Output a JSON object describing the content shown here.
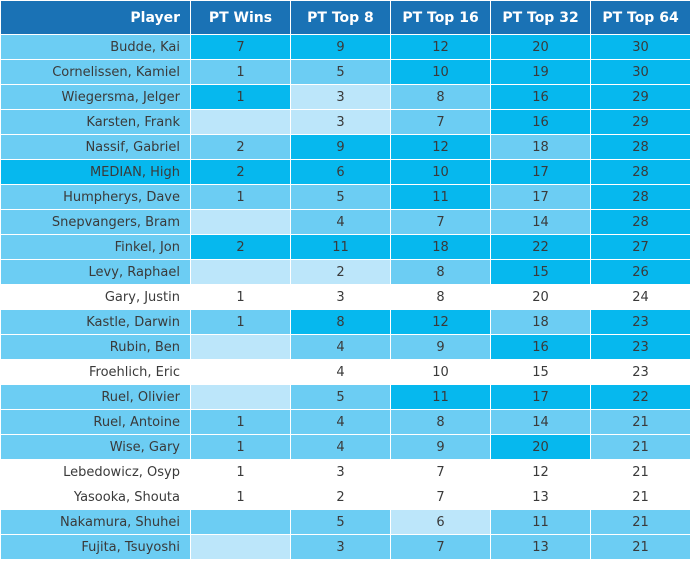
{
  "table": {
    "columns": [
      "Player",
      "PT Wins",
      "PT Top 8",
      "PT Top 16",
      "PT Top 32",
      "PT Top 64"
    ],
    "rows": [
      {
        "cells": [
          "Budde, Kai",
          "7",
          "9",
          "12",
          "20",
          "30"
        ],
        "shades": [
          2,
          3,
          3,
          3,
          3,
          3
        ]
      },
      {
        "cells": [
          "Cornelissen, Kamiel",
          "1",
          "5",
          "10",
          "19",
          "30"
        ],
        "shades": [
          2,
          2,
          2,
          3,
          3,
          3
        ]
      },
      {
        "cells": [
          "Wiegersma, Jelger",
          "1",
          "3",
          "8",
          "16",
          "29"
        ],
        "shades": [
          2,
          3,
          1,
          2,
          3,
          3
        ]
      },
      {
        "cells": [
          "Karsten, Frank",
          "",
          "3",
          "7",
          "16",
          "29"
        ],
        "shades": [
          2,
          1,
          1,
          2,
          3,
          3
        ]
      },
      {
        "cells": [
          "Nassif, Gabriel",
          "2",
          "9",
          "12",
          "18",
          "28"
        ],
        "shades": [
          2,
          2,
          3,
          3,
          2,
          3
        ]
      },
      {
        "cells": [
          "MEDIAN, High",
          "2",
          "6",
          "10",
          "17",
          "28"
        ],
        "shades": [
          3,
          3,
          3,
          3,
          3,
          3
        ]
      },
      {
        "cells": [
          "Humpherys, Dave",
          "1",
          "5",
          "11",
          "17",
          "28"
        ],
        "shades": [
          2,
          2,
          2,
          3,
          2,
          3
        ]
      },
      {
        "cells": [
          "Snepvangers, Bram",
          "",
          "4",
          "7",
          "14",
          "28"
        ],
        "shades": [
          2,
          1,
          2,
          2,
          2,
          3
        ]
      },
      {
        "cells": [
          "Finkel, Jon",
          "2",
          "11",
          "18",
          "22",
          "27"
        ],
        "shades": [
          2,
          3,
          3,
          3,
          3,
          3
        ]
      },
      {
        "cells": [
          "Levy, Raphael",
          "",
          "2",
          "8",
          "15",
          "26"
        ],
        "shades": [
          2,
          1,
          1,
          2,
          3,
          3
        ]
      },
      {
        "cells": [
          "Gary, Justin",
          "1",
          "3",
          "8",
          "20",
          "24"
        ],
        "shades": [
          0,
          0,
          0,
          0,
          0,
          0
        ]
      },
      {
        "cells": [
          "Kastle, Darwin",
          "1",
          "8",
          "12",
          "18",
          "23"
        ],
        "shades": [
          2,
          2,
          3,
          3,
          2,
          3
        ]
      },
      {
        "cells": [
          "Rubin, Ben",
          "",
          "4",
          "9",
          "16",
          "23"
        ],
        "shades": [
          2,
          1,
          2,
          2,
          3,
          3
        ]
      },
      {
        "cells": [
          "Froehlich, Eric",
          "",
          "4",
          "10",
          "15",
          "23"
        ],
        "shades": [
          0,
          0,
          0,
          0,
          0,
          0
        ]
      },
      {
        "cells": [
          "Ruel, Olivier",
          "",
          "5",
          "11",
          "17",
          "22"
        ],
        "shades": [
          2,
          1,
          2,
          3,
          3,
          3
        ]
      },
      {
        "cells": [
          "Ruel, Antoine",
          "1",
          "4",
          "8",
          "14",
          "21"
        ],
        "shades": [
          2,
          2,
          2,
          2,
          2,
          2
        ]
      },
      {
        "cells": [
          "Wise, Gary",
          "1",
          "4",
          "9",
          "20",
          "21"
        ],
        "shades": [
          2,
          2,
          2,
          2,
          3,
          2
        ]
      },
      {
        "cells": [
          "Lebedowicz, Osyp",
          "1",
          "3",
          "7",
          "12",
          "21"
        ],
        "shades": [
          0,
          0,
          0,
          0,
          0,
          0
        ]
      },
      {
        "cells": [
          "Yasooka, Shouta",
          "1",
          "2",
          "7",
          "13",
          "21"
        ],
        "shades": [
          0,
          0,
          0,
          0,
          0,
          0
        ]
      },
      {
        "cells": [
          "Nakamura, Shuhei",
          "",
          "5",
          "6",
          "11",
          "21"
        ],
        "shades": [
          2,
          2,
          2,
          1,
          2,
          2
        ]
      },
      {
        "cells": [
          "Fujita, Tsuyoshi",
          "",
          "3",
          "7",
          "13",
          "21"
        ],
        "shades": [
          2,
          1,
          2,
          2,
          2,
          2
        ]
      }
    ]
  },
  "colors": {
    "header": "#1a72b5",
    "white": "#ffffff",
    "light": "#bce6fa",
    "medium": "#6ccdf3",
    "strong": "#06b8ee"
  }
}
